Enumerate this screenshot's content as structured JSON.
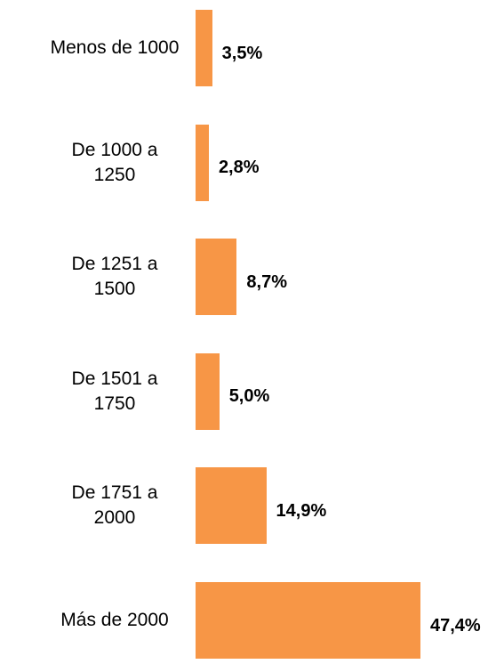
{
  "chart_data": {
    "type": "bar",
    "orientation": "horizontal",
    "categories": [
      "Menos de 1000",
      "De 1000 a 1250",
      "De 1251 a 1500",
      "De 1501 a 1750",
      "De 1751 a 2000",
      "Más de 2000"
    ],
    "values": [
      3.5,
      2.8,
      8.7,
      5.0,
      14.9,
      47.4
    ],
    "value_labels": [
      "3,5%",
      "2,8%",
      "8,7%",
      "5,0%",
      "14,9%",
      "47,4%"
    ],
    "color": "#f79646"
  }
}
